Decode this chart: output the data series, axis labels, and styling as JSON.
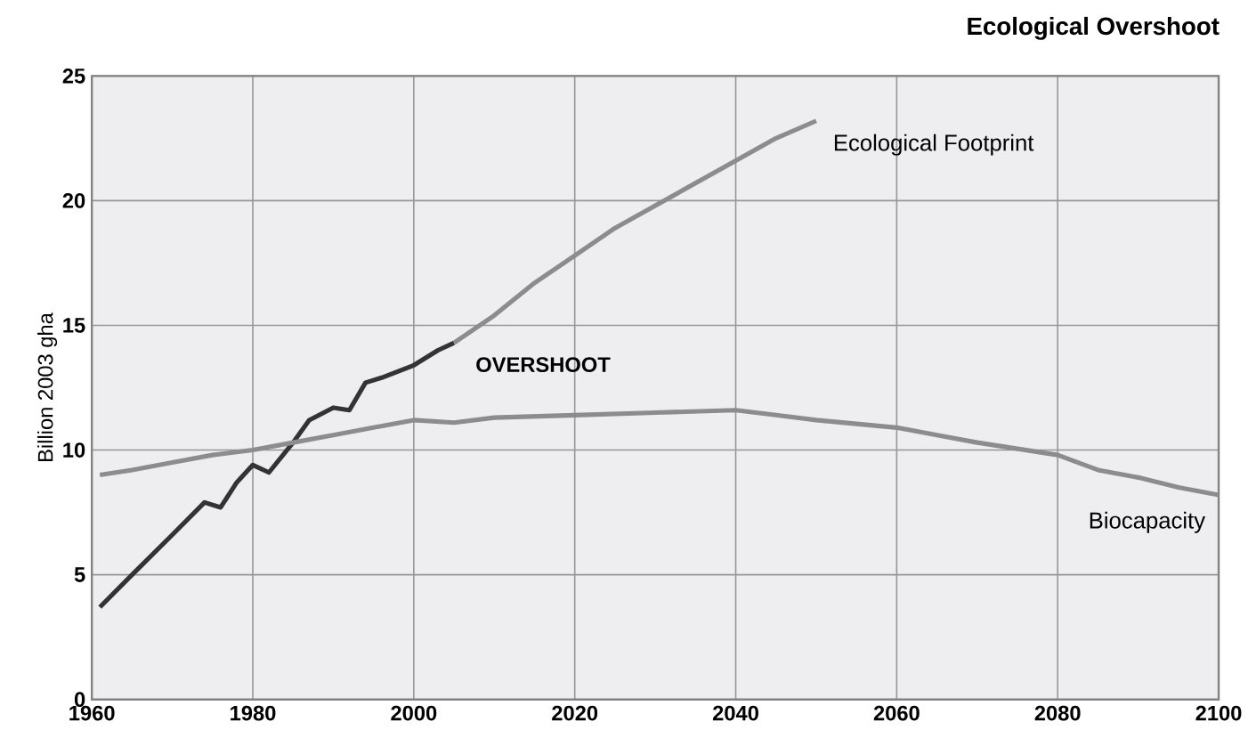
{
  "chart_data": {
    "type": "line",
    "title": "Ecological Overshoot",
    "ylabel": "Billion 2003 gha",
    "annotations": [
      "OVERSHOOT"
    ],
    "series": [
      {
        "color": "#333333",
        "x": [
          1961,
          1965,
          1970,
          1974,
          1976,
          1978,
          1980,
          1982,
          1985,
          1987,
          1990,
          1992,
          1994,
          1996,
          2000,
          2003,
          2005
        ],
        "values": [
          3.7,
          5.0,
          6.6,
          7.9,
          7.7,
          8.7,
          9.4,
          9.1,
          10.3,
          11.2,
          11.7,
          11.6,
          12.7,
          12.9,
          13.4,
          14.0,
          14.3
        ]
      },
      {
        "name": "Ecological Footprint",
        "color": "#8c8c8c",
        "x": [
          2005,
          2010,
          2015,
          2020,
          2025,
          2030,
          2035,
          2040,
          2045,
          2050
        ],
        "values": [
          14.3,
          15.4,
          16.7,
          17.8,
          18.9,
          19.8,
          20.7,
          21.6,
          22.5,
          23.2
        ]
      },
      {
        "name": "Biocapacity",
        "color": "#8c8c8c",
        "x": [
          1961,
          1965,
          1970,
          1975,
          1980,
          1985,
          1990,
          1995,
          2000,
          2005,
          2010,
          2020,
          2030,
          2040,
          2045,
          2050,
          2060,
          2065,
          2070,
          2080,
          2085,
          2090,
          2095,
          2100
        ],
        "values": [
          9.0,
          9.2,
          9.5,
          9.8,
          10.0,
          10.3,
          10.6,
          10.9,
          11.2,
          11.1,
          11.3,
          11.4,
          11.5,
          11.6,
          11.4,
          11.2,
          10.9,
          10.6,
          10.3,
          9.8,
          9.2,
          8.9,
          8.5,
          8.2
        ]
      }
    ],
    "xlim": [
      1960,
      2100
    ],
    "xticks": [
      1960,
      1980,
      2000,
      2020,
      2040,
      2060,
      2080,
      2100
    ],
    "ylim": [
      0,
      25
    ],
    "yticks": [
      0,
      5,
      10,
      15,
      20,
      25
    ],
    "grid": true,
    "marker": "none",
    "line_style": "solid"
  }
}
